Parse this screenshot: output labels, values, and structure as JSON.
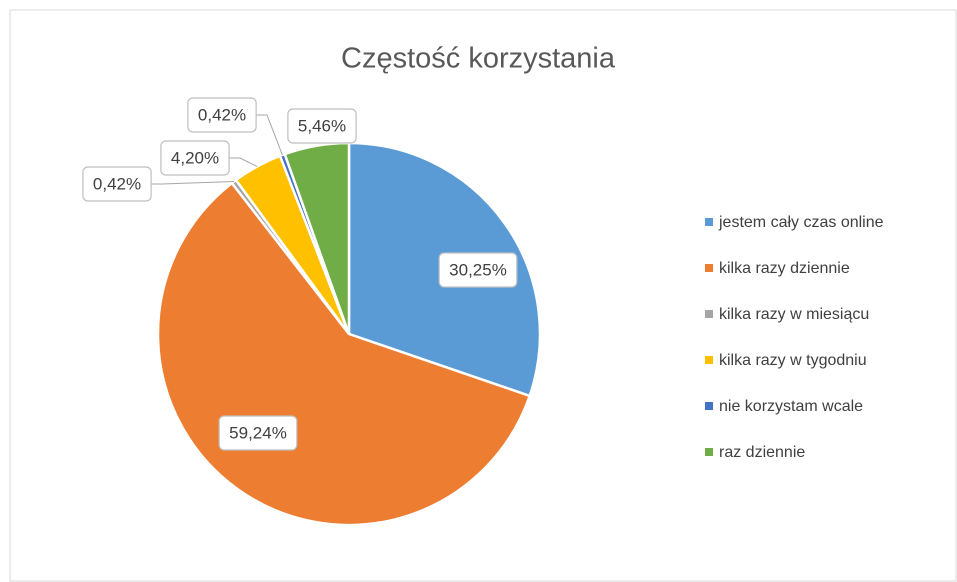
{
  "chart_data": {
    "type": "pie",
    "title": "Częstość korzystania",
    "categories": [
      "jestem cały czas online",
      "kilka razy dziennie",
      "kilka razy w miesiącu",
      "kilka razy w tygodniu",
      "nie korzystam wcale",
      "raz dziennie"
    ],
    "values": [
      30.25,
      59.24,
      0.42,
      4.2,
      0.42,
      5.46
    ],
    "value_labels": [
      "30,25%",
      "59,24%",
      "0,42%",
      "4,20%",
      "0,42%",
      "5,46%"
    ],
    "colors": [
      "#5b9bd5",
      "#ed7d31",
      "#a5a5a5",
      "#ffc000",
      "#4472c4",
      "#70ad47"
    ],
    "legend": "right"
  }
}
